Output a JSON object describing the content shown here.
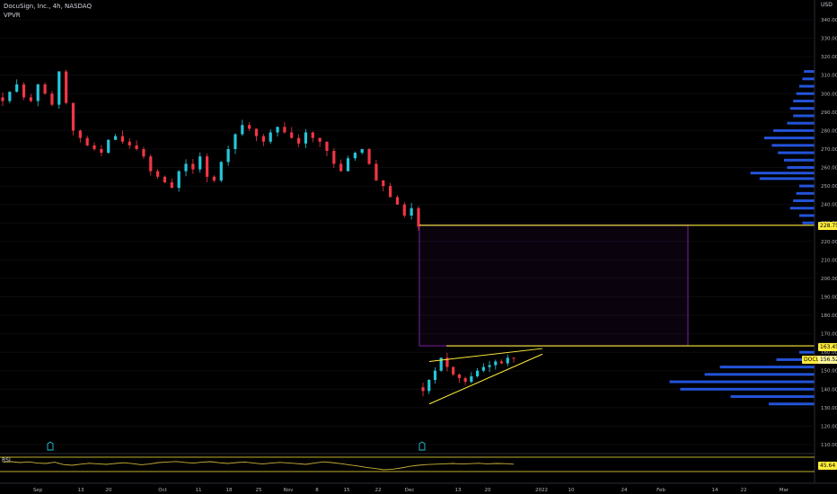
{
  "header": {
    "symbol_line": "DocuSign, Inc., 4h, NASDAQ",
    "indicator": "VPVR",
    "currency": "USD"
  },
  "colors": {
    "background": "#000000",
    "up": "#26c6da",
    "down": "#f23645",
    "volume_profile": "#2962ff",
    "resistance_line": "#ffeb3b",
    "box_border": "#7b1fa2",
    "rsi_line": "#c9b037"
  },
  "chart_data": [
    {
      "type": "candlestick",
      "title": "DocuSign, Inc., 4h, NASDAQ",
      "y_axis_ticks": [
        110,
        120,
        130,
        140,
        150,
        160,
        170,
        180,
        190,
        200,
        210,
        220,
        230,
        240,
        250,
        260,
        270,
        280,
        290,
        300,
        310,
        320,
        330,
        340
      ],
      "ylim": [
        105,
        352
      ],
      "x_axis_ticks": [
        "Sep",
        "13",
        "20",
        "Oct",
        "11",
        "18",
        "25",
        "Nov",
        "8",
        "15",
        "22",
        "Dec",
        "13",
        "20",
        "2022",
        "10",
        "24",
        "Feb",
        "14",
        "22",
        "Mar"
      ],
      "close_path": [
        296,
        301,
        305,
        298,
        296,
        305,
        300,
        294,
        312,
        295,
        280,
        276,
        272,
        270,
        268,
        275,
        277,
        274,
        272,
        270,
        266,
        258,
        255,
        252,
        249,
        258,
        262,
        259,
        266,
        255,
        253,
        263,
        270,
        278,
        283,
        281,
        277,
        274,
        279,
        282,
        279,
        276,
        273,
        279,
        276,
        274,
        269,
        262,
        258,
        265,
        268,
        270,
        262,
        253,
        250,
        244,
        240,
        234,
        238,
        228
      ],
      "dec_path": [
        139,
        145,
        150,
        157,
        152,
        148,
        146,
        144,
        147,
        150,
        152,
        153,
        155,
        154,
        157,
        156.5
      ],
      "price_labels": {
        "level_high": "228.75",
        "level_low": "163.45",
        "current": "156.52",
        "current_symbol": "DOCU"
      },
      "levels": [
        228.75,
        163.45
      ],
      "gap_box": {
        "top": 228.75,
        "bottom": 163.45
      },
      "wedge": {
        "upper_start": 155,
        "upper_end": 162,
        "lower_start": 132,
        "lower_end": 159
      },
      "volume_profile": [
        {
          "price": 312,
          "size": 0.07
        },
        {
          "price": 308,
          "size": 0.08
        },
        {
          "price": 304,
          "size": 0.1
        },
        {
          "price": 300,
          "size": 0.12
        },
        {
          "price": 296,
          "size": 0.14
        },
        {
          "price": 292,
          "size": 0.16
        },
        {
          "price": 288,
          "size": 0.14
        },
        {
          "price": 284,
          "size": 0.18
        },
        {
          "price": 280,
          "size": 0.27
        },
        {
          "price": 276,
          "size": 0.33
        },
        {
          "price": 272,
          "size": 0.28
        },
        {
          "price": 268,
          "size": 0.24
        },
        {
          "price": 264,
          "size": 0.2
        },
        {
          "price": 260,
          "size": 0.18
        },
        {
          "price": 257,
          "size": 0.42
        },
        {
          "price": 254,
          "size": 0.36
        },
        {
          "price": 250,
          "size": 0.1
        },
        {
          "price": 246,
          "size": 0.12
        },
        {
          "price": 242,
          "size": 0.14
        },
        {
          "price": 238,
          "size": 0.16
        },
        {
          "price": 234,
          "size": 0.1
        },
        {
          "price": 230,
          "size": 0.08
        },
        {
          "price": 160,
          "size": 0.1
        },
        {
          "price": 156,
          "size": 0.25
        },
        {
          "price": 152,
          "size": 0.62
        },
        {
          "price": 148,
          "size": 0.72
        },
        {
          "price": 144,
          "size": 0.95
        },
        {
          "price": 140,
          "size": 0.88
        },
        {
          "price": 136,
          "size": 0.55
        },
        {
          "price": 132,
          "size": 0.3
        }
      ]
    },
    {
      "type": "line",
      "title": "RSI",
      "value_label": "45.64",
      "ylim": [
        0,
        100
      ],
      "values": [
        58,
        60,
        55,
        59,
        52,
        50,
        57,
        44,
        40,
        46,
        51,
        48,
        45,
        50,
        54,
        49,
        43,
        47,
        55,
        58,
        61,
        56,
        52,
        57,
        60,
        54,
        50,
        55,
        58,
        52,
        47,
        52,
        56,
        53,
        49,
        45,
        52,
        59,
        55,
        49,
        42,
        36,
        28,
        22,
        15,
        18,
        25,
        34,
        40,
        44,
        46,
        48,
        50,
        47,
        49,
        51,
        48,
        50,
        49,
        46
      ]
    }
  ]
}
